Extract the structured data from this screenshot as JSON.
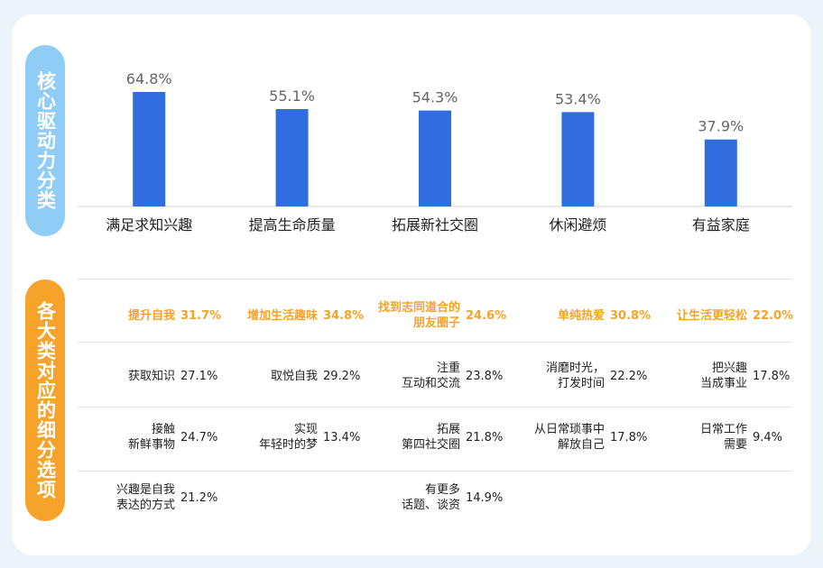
{
  "side_labels": {
    "top": "核心驱动力分类",
    "bottom": "各大类对应的细分选项"
  },
  "colors": {
    "bar": "#326de0",
    "top_label": "#8fcdf6",
    "bottom_label": "#f5a32a",
    "header_text": "#f5a32a"
  },
  "chart_data": {
    "type": "bar",
    "categories": [
      "满足求知兴趣",
      "提高生命质量",
      "拓展新社交圈",
      "休闲避烦",
      "有益家庭"
    ],
    "values": [
      64.8,
      55.1,
      54.3,
      53.4,
      37.9
    ],
    "value_labels": [
      "64.8%",
      "55.1%",
      "54.3%",
      "53.4%",
      "37.9%"
    ],
    "title": "",
    "xlabel": "",
    "ylabel": "",
    "ylim": [
      0,
      80
    ],
    "grid": false,
    "legend": "none"
  },
  "table": {
    "headers": [
      {
        "label": "提升自我",
        "pct": "31.7%"
      },
      {
        "label": "增加生活趣味",
        "pct": "34.8%"
      },
      {
        "label": "找到志同道合的朋友圈子",
        "pct": "24.6%"
      },
      {
        "label": "单纯热爱",
        "pct": "30.8%"
      },
      {
        "label": "让生活更轻松",
        "pct": "22.0%"
      }
    ],
    "rows": [
      [
        {
          "label": "获取知识",
          "pct": "27.1%"
        },
        {
          "label": "取悦自我",
          "pct": "29.2%"
        },
        {
          "label": "注重互动和交流",
          "pct": "23.8%"
        },
        {
          "label": "消磨时光，打发时间",
          "pct": "22.2%"
        },
        {
          "label": "把兴趣当成事业",
          "pct": "17.8%"
        }
      ],
      [
        {
          "label": "接触新鲜事物",
          "pct": "24.7%"
        },
        {
          "label": "实现年轻时的梦",
          "pct": "13.4%"
        },
        {
          "label": "拓展第四社交圈",
          "pct": "21.8%"
        },
        {
          "label": "从日常琐事中解放自己",
          "pct": "17.8%"
        },
        {
          "label": "日常工作需要",
          "pct": "9.4%"
        }
      ],
      [
        {
          "label": "兴趣是自我表达的方式",
          "pct": "21.2%"
        },
        {
          "label": "",
          "pct": ""
        },
        {
          "label": "有更多话题、谈资",
          "pct": "14.9%"
        },
        {
          "label": "",
          "pct": ""
        },
        {
          "label": "",
          "pct": ""
        }
      ]
    ]
  }
}
